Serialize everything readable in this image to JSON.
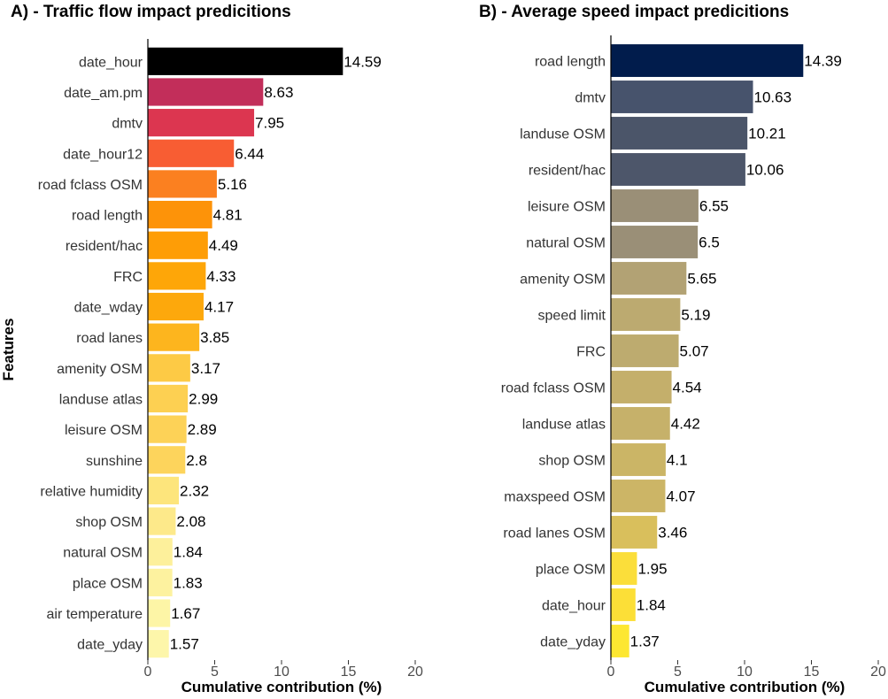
{
  "y_axis_title": "Features",
  "chart_data": [
    {
      "type": "bar",
      "orientation": "horizontal",
      "title": "A) - Traffic flow impact predicitions",
      "xlabel": "Cumulative contribution (%)",
      "ylabel": "Features",
      "xlim": [
        0,
        20
      ],
      "xticks": [
        0,
        5,
        10,
        15,
        20
      ],
      "categories": [
        "date_hour",
        "date_am.pm",
        "dmtv",
        "date_hour12",
        "road fclass OSM",
        "road length",
        "resident/hac",
        "FRC",
        "date_wday",
        "road lanes",
        "amenity OSM",
        "landuse atlas",
        "leisure OSM",
        "sunshine",
        "relative humidity",
        "shop OSM",
        "natural OSM",
        "place OSM",
        "air temperature",
        "date_yday"
      ],
      "values": [
        14.59,
        8.63,
        7.95,
        6.44,
        5.16,
        4.81,
        4.49,
        4.33,
        4.17,
        3.85,
        3.17,
        2.99,
        2.89,
        2.8,
        2.32,
        2.08,
        1.84,
        1.83,
        1.67,
        1.57
      ],
      "value_labels": [
        "14.59",
        "8.63",
        "7.95",
        "6.44",
        "5.16",
        "4.81",
        "4.49",
        "4.33",
        "4.17",
        "3.85",
        "3.17",
        "2.99",
        "2.89",
        "2.8",
        "2.32",
        "2.08",
        "1.84",
        "1.83",
        "1.67",
        "1.57"
      ],
      "colors": [
        "#000000",
        "#c22e5a",
        "#dc3650",
        "#f85d33",
        "#fb8020",
        "#fd9309",
        "#fe9d06",
        "#fea608",
        "#fda80c",
        "#fdb51e",
        "#fdca45",
        "#fdd052",
        "#fdd257",
        "#fdd45c",
        "#fde57c",
        "#fde98a",
        "#fdf09b",
        "#fdf29f",
        "#fdf5a6",
        "#fdf6aa"
      ]
    },
    {
      "type": "bar",
      "orientation": "horizontal",
      "title": "B) - Average speed impact predicitions",
      "xlabel": "Cumulative contribution (%)",
      "ylabel": "",
      "xlim": [
        0,
        20
      ],
      "xticks": [
        0,
        5,
        10,
        15,
        20
      ],
      "categories": [
        "road length",
        "dmtv",
        "landuse OSM",
        "resident/hac",
        "leisure OSM",
        "natural OSM",
        "amenity OSM",
        "speed limit",
        "FRC",
        "road fclass OSM",
        "landuse atlas",
        "shop OSM",
        "maxspeed OSM",
        "road lanes OSM",
        "place OSM",
        "date_hour",
        "date_yday"
      ],
      "values": [
        14.39,
        10.63,
        10.21,
        10.06,
        6.55,
        6.5,
        5.65,
        5.19,
        5.07,
        4.54,
        4.42,
        4.1,
        4.07,
        3.46,
        1.95,
        1.84,
        1.37
      ],
      "value_labels": [
        "14.39",
        "10.63",
        "10.21",
        "10.06",
        "6.55",
        "6.5",
        "5.65",
        "5.19",
        "5.07",
        "4.54",
        "4.42",
        "4.1",
        "4.07",
        "3.46",
        "1.95",
        "1.84",
        "1.37"
      ],
      "colors": [
        "#011c4c",
        "#47536c",
        "#4b5569",
        "#4d566a",
        "#9a8f77",
        "#9a8f77",
        "#b2a274",
        "#bcaa70",
        "#bdab6f",
        "#c4af6b",
        "#c6b16a",
        "#cbb566",
        "#ccb566",
        "#d9bf5c",
        "#fbde3a",
        "#fcdf37",
        "#fde731"
      ]
    }
  ]
}
